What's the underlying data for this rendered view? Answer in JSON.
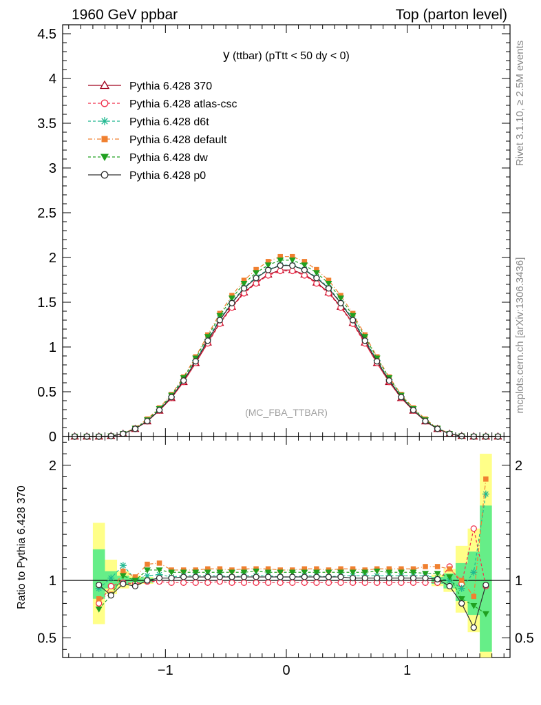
{
  "header": {
    "left": "1960 GeV ppbar",
    "right": "Top (parton level)"
  },
  "side_text": {
    "rivet": "Rivet 3.1.10, ≥ 2.5M events",
    "mcplots": "mcplots.cern.ch [arXiv:1306.3436]"
  },
  "chart_data": [
    {
      "type": "line",
      "title_main": "y",
      "title_rest": " (ttbar) (pTtt < 50 dy < 0)",
      "watermark": "(MC_FBA_TTBAR)",
      "xlim": [
        -1.85,
        1.85
      ],
      "ylim": [
        0,
        4.6
      ],
      "ytick_labels": [
        "0",
        "0.5",
        "1",
        "1.5",
        "2",
        "2.5",
        "3",
        "3.5",
        "4",
        "4.5"
      ],
      "ytick_values": [
        0,
        0.5,
        1,
        1.5,
        2,
        2.5,
        3,
        3.5,
        4,
        4.5
      ],
      "legend_position": "top-left",
      "x": [
        -1.75,
        -1.65,
        -1.55,
        -1.45,
        -1.35,
        -1.25,
        -1.15,
        -1.05,
        -0.95,
        -0.85,
        -0.75,
        -0.65,
        -0.55,
        -0.45,
        -0.35,
        -0.25,
        -0.15,
        -0.05,
        0.05,
        0.15,
        0.25,
        0.35,
        0.45,
        0.55,
        0.65,
        0.75,
        0.85,
        0.95,
        1.05,
        1.15,
        1.25,
        1.35,
        1.45,
        1.55,
        1.65,
        1.75
      ],
      "series": [
        {
          "name": "Pythia 6.428 370",
          "color": "#a0001c",
          "marker": "triangle-open",
          "dash": "",
          "values": [
            0.0,
            0.0,
            0.0,
            0.005,
            0.03,
            0.085,
            0.17,
            0.29,
            0.43,
            0.61,
            0.82,
            1.05,
            1.27,
            1.45,
            1.61,
            1.72,
            1.81,
            1.86,
            1.86,
            1.81,
            1.72,
            1.61,
            1.45,
            1.27,
            1.05,
            0.82,
            0.61,
            0.43,
            0.29,
            0.17,
            0.085,
            0.03,
            0.005,
            0.0,
            0.0,
            0.0
          ]
        },
        {
          "name": "Pythia 6.428 atlas-csc",
          "color": "#f0304c",
          "marker": "circle-open",
          "dash": "4,3",
          "values": [
            0.0,
            0.0,
            0.0,
            0.005,
            0.03,
            0.085,
            0.17,
            0.29,
            0.43,
            0.61,
            0.82,
            1.04,
            1.26,
            1.44,
            1.6,
            1.71,
            1.8,
            1.85,
            1.85,
            1.8,
            1.71,
            1.6,
            1.44,
            1.26,
            1.04,
            0.82,
            0.61,
            0.43,
            0.29,
            0.17,
            0.085,
            0.03,
            0.005,
            0.0,
            0.0,
            0.0
          ]
        },
        {
          "name": "Pythia 6.428 d6t",
          "color": "#20b890",
          "marker": "asterisk",
          "dash": "4,3",
          "values": [
            0.0,
            0.0,
            0.0,
            0.005,
            0.031,
            0.087,
            0.175,
            0.3,
            0.445,
            0.635,
            0.85,
            1.085,
            1.315,
            1.5,
            1.665,
            1.78,
            1.865,
            1.915,
            1.915,
            1.865,
            1.78,
            1.665,
            1.5,
            1.315,
            1.085,
            0.85,
            0.635,
            0.445,
            0.3,
            0.175,
            0.087,
            0.031,
            0.005,
            0.0,
            0.0,
            0.0
          ]
        },
        {
          "name": "Pythia 6.428 default",
          "color": "#f08030",
          "marker": "square-filled",
          "dash": "6,3,1,3",
          "values": [
            0.0,
            0.0,
            0.0,
            0.006,
            0.033,
            0.094,
            0.195,
            0.32,
            0.47,
            0.665,
            0.89,
            1.135,
            1.375,
            1.575,
            1.745,
            1.865,
            1.955,
            2.01,
            2.01,
            1.955,
            1.865,
            1.745,
            1.575,
            1.375,
            1.135,
            0.89,
            0.665,
            0.47,
            0.32,
            0.195,
            0.094,
            0.033,
            0.006,
            0.0,
            0.0,
            0.0
          ]
        },
        {
          "name": "Pythia 6.428 dw",
          "color": "#20a020",
          "marker": "triangle-down-filled",
          "dash": "4,3",
          "values": [
            0.0,
            0.0,
            0.0,
            0.005,
            0.032,
            0.09,
            0.185,
            0.31,
            0.46,
            0.655,
            0.875,
            1.115,
            1.35,
            1.545,
            1.71,
            1.83,
            1.915,
            1.97,
            1.97,
            1.915,
            1.83,
            1.71,
            1.545,
            1.35,
            1.115,
            0.875,
            0.655,
            0.46,
            0.31,
            0.185,
            0.09,
            0.032,
            0.005,
            0.0,
            0.0,
            0.0
          ]
        },
        {
          "name": "Pythia 6.428 p0",
          "color": "#303030",
          "marker": "circle-open",
          "dash": "",
          "values": [
            0.0,
            0.0,
            0.0,
            0.005,
            0.03,
            0.086,
            0.172,
            0.295,
            0.44,
            0.625,
            0.84,
            1.07,
            1.3,
            1.49,
            1.655,
            1.77,
            1.86,
            1.91,
            1.91,
            1.86,
            1.77,
            1.655,
            1.49,
            1.3,
            1.07,
            0.84,
            0.625,
            0.44,
            0.295,
            0.172,
            0.086,
            0.03,
            0.005,
            0.0,
            0.0,
            0.0
          ]
        }
      ]
    },
    {
      "type": "line",
      "ylabel": "Ratio to Pythia 6.428 370",
      "xlim": [
        -1.85,
        1.85
      ],
      "ylim": [
        0.33,
        2.25
      ],
      "xtick_labels": [
        "−1",
        "0",
        "1"
      ],
      "xtick_values": [
        -1,
        0,
        1
      ],
      "ytick_labels": [
        "0.5",
        "1",
        "2"
      ],
      "ytick_values": [
        0.5,
        1,
        2
      ],
      "reference_line": 1,
      "bands": {
        "x": [
          -1.55,
          -1.45,
          -1.35,
          -1.25,
          -1.15,
          1.25,
          1.35,
          1.45,
          1.55,
          1.65
        ],
        "yellow": [
          [
            0.62,
            1.5
          ],
          [
            0.88,
            1.18
          ],
          [
            0.93,
            1.08
          ],
          [
            0.96,
            1.04
          ],
          [
            0.97,
            1.03
          ],
          [
            0.95,
            1.05
          ],
          [
            0.9,
            1.1
          ],
          [
            0.72,
            1.3
          ],
          [
            0.55,
            1.45
          ],
          [
            0.33,
            2.1
          ]
        ],
        "green": [
          [
            0.84,
            1.27
          ],
          [
            0.93,
            1.08
          ],
          [
            0.96,
            1.04
          ],
          [
            0.98,
            1.02
          ],
          [
            0.98,
            1.02
          ],
          [
            0.97,
            1.03
          ],
          [
            0.93,
            1.06
          ],
          [
            0.82,
            1.15
          ],
          [
            0.7,
            1.25
          ],
          [
            0.38,
            1.65
          ]
        ]
      },
      "x": [
        -1.55,
        -1.45,
        -1.35,
        -1.25,
        -1.15,
        -1.05,
        -0.95,
        -0.85,
        -0.75,
        -0.65,
        -0.55,
        -0.45,
        -0.35,
        -0.25,
        -0.15,
        -0.05,
        0.05,
        0.15,
        0.25,
        0.35,
        0.45,
        0.55,
        0.65,
        0.75,
        0.85,
        0.95,
        1.05,
        1.15,
        1.25,
        1.35,
        1.45,
        1.55,
        1.65
      ],
      "series": [
        {
          "name": "Pythia 6.428 atlas-csc",
          "color": "#f0304c",
          "marker": "circle-open",
          "dash": "4,3",
          "values": [
            0.8,
            0.95,
            0.98,
            0.97,
            0.99,
            0.99,
            0.98,
            0.98,
            0.98,
            0.98,
            0.99,
            0.98,
            0.98,
            0.98,
            0.98,
            0.98,
            0.98,
            0.98,
            0.98,
            0.98,
            0.98,
            0.98,
            0.98,
            0.98,
            0.98,
            0.98,
            0.98,
            0.98,
            0.98,
            1.12,
            0.97,
            1.45,
            0.95
          ]
        },
        {
          "name": "Pythia 6.428 d6t",
          "color": "#20b890",
          "marker": "asterisk",
          "dash": "4,3",
          "values": [
            0.93,
            1.02,
            1.13,
            1.01,
            1.04,
            1.05,
            1.03,
            1.04,
            1.04,
            1.04,
            1.04,
            1.03,
            1.04,
            1.04,
            1.04,
            1.03,
            1.03,
            1.04,
            1.04,
            1.03,
            1.04,
            1.04,
            1.04,
            1.04,
            1.04,
            1.04,
            1.04,
            1.04,
            1.02,
            1.0,
            0.93,
            1.07,
            1.75
          ]
        },
        {
          "name": "Pythia 6.428 default",
          "color": "#f08030",
          "marker": "square-filled",
          "dash": "6,3,1,3",
          "values": [
            0.84,
            0.88,
            1.08,
            1.03,
            1.14,
            1.15,
            1.09,
            1.09,
            1.09,
            1.1,
            1.1,
            1.09,
            1.1,
            1.1,
            1.1,
            1.09,
            1.09,
            1.1,
            1.1,
            1.09,
            1.1,
            1.1,
            1.09,
            1.1,
            1.1,
            1.1,
            1.1,
            1.12,
            1.12,
            1.1,
            1.0,
            0.86,
            1.88
          ]
        },
        {
          "name": "Pythia 6.428 dw",
          "color": "#20a020",
          "marker": "triangle-down-filled",
          "dash": "4,3",
          "values": [
            0.75,
            0.87,
            1.04,
            1.0,
            1.09,
            1.09,
            1.07,
            1.07,
            1.07,
            1.07,
            1.07,
            1.07,
            1.07,
            1.08,
            1.07,
            1.07,
            1.07,
            1.07,
            1.07,
            1.07,
            1.07,
            1.07,
            1.07,
            1.08,
            1.07,
            1.07,
            1.07,
            1.06,
            1.06,
            1.03,
            0.84,
            0.78,
            0.71
          ]
        },
        {
          "name": "Pythia 6.428 p0",
          "color": "#303030",
          "marker": "circle-open",
          "dash": "",
          "values": [
            0.96,
            0.87,
            0.97,
            0.95,
            1.0,
            1.02,
            1.02,
            1.03,
            1.03,
            1.03,
            1.03,
            1.03,
            1.03,
            1.03,
            1.03,
            1.03,
            1.03,
            1.03,
            1.03,
            1.03,
            1.03,
            1.02,
            1.02,
            1.02,
            1.02,
            1.02,
            1.02,
            1.02,
            1.01,
            0.95,
            0.8,
            0.59,
            0.96
          ]
        }
      ]
    }
  ]
}
